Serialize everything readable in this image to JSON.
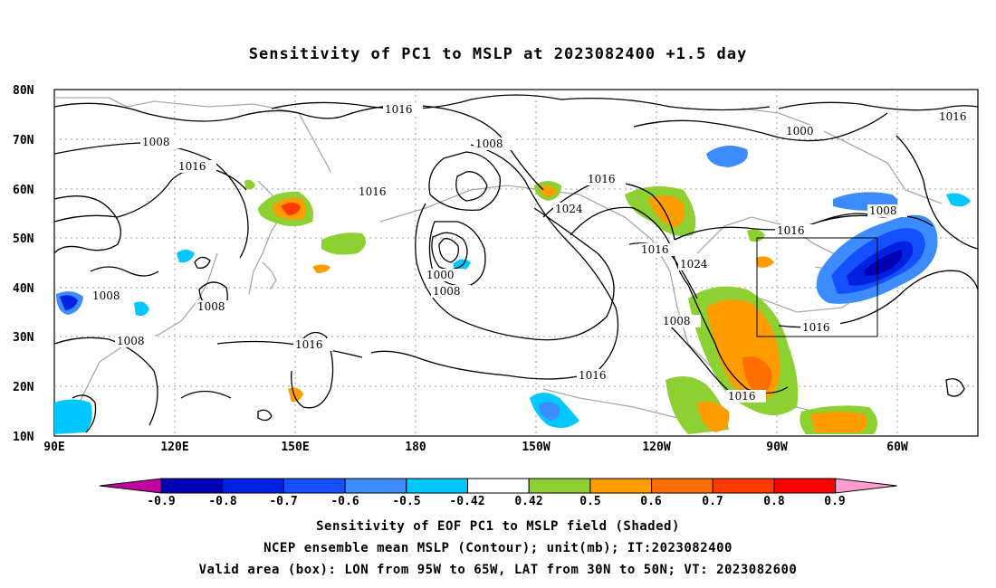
{
  "title": "Sensitivity of PC1 to MSLP at 2023082400 +1.5 day",
  "lat_labels": [
    "80N",
    "70N",
    "60N",
    "50N",
    "40N",
    "30N",
    "20N",
    "10N"
  ],
  "lon_labels": [
    "90E",
    "120E",
    "150E",
    "180",
    "150W",
    "120W",
    "90W",
    "60W"
  ],
  "contour_labels": [
    "1016",
    "1008",
    "1016",
    "1016",
    "1008",
    "1016",
    "1000",
    "1016",
    "1024",
    "1000",
    "1008",
    "1016",
    "1024",
    "1008",
    "1016",
    "1008",
    "1008",
    "1008",
    "1016",
    "1016",
    "1008",
    "1016",
    "1016",
    "1008",
    "1016"
  ],
  "colorbar": {
    "tick_labels": [
      "-0.9",
      "-0.8",
      "-0.7",
      "-0.6",
      "-0.5",
      "-0.42",
      "0.42",
      "0.5",
      "0.6",
      "0.7",
      "0.8",
      "0.9"
    ],
    "colors": [
      "#c000a0",
      "#0000b4",
      "#0022e0",
      "#1450ff",
      "#3c8cff",
      "#00c8ff",
      "#ffffff",
      "#8cd032",
      "#ff9c00",
      "#ff6e00",
      "#ff3a00",
      "#ff0000",
      "#ff9cd0"
    ]
  },
  "valid_box": {
    "lon_from": "95W",
    "lon_to": "65W",
    "lat_from": "30N",
    "lat_to": "50N"
  },
  "captions": {
    "line1": "Sensitivity of EOF PC1 to MSLP field (Shaded)",
    "line2": "NCEP ensemble mean MSLP (Contour); unit(mb); IT:2023082400",
    "line3": "Valid area (box): LON from 95W to 65W, LAT from 30N to 50N; VT: 2023082600"
  }
}
